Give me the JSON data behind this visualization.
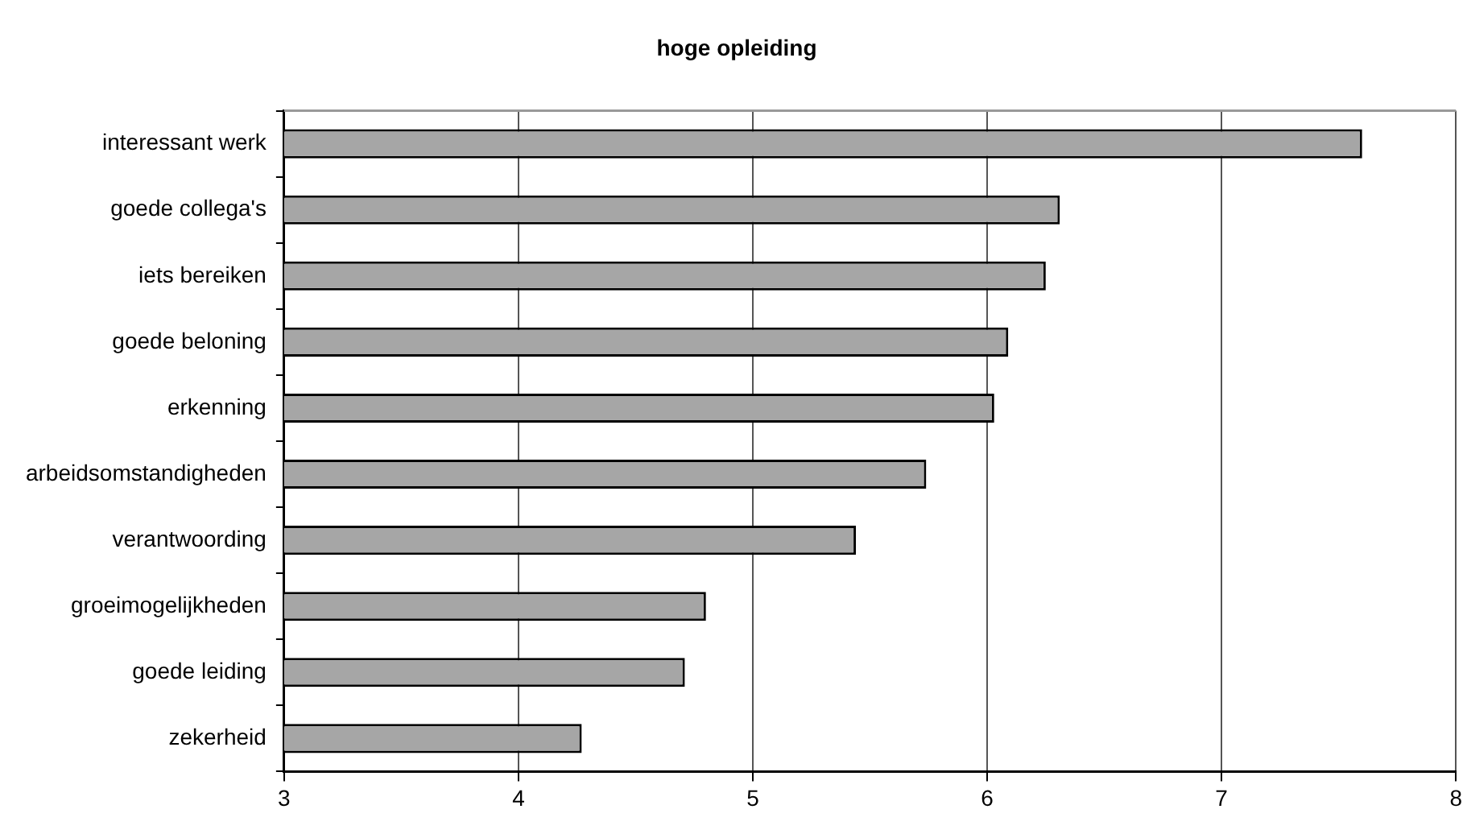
{
  "chart_data": {
    "type": "bar",
    "orientation": "horizontal",
    "title": "hoge opleiding",
    "categories": [
      "interessant werk",
      "goede collega's",
      "iets bereiken",
      "goede beloning",
      "erkenning",
      "arbeidsomstandigheden",
      "verantwoording",
      "groeimogelijkheden",
      "goede leiding",
      "zekerheid"
    ],
    "values": [
      7.6,
      6.31,
      6.25,
      6.09,
      6.03,
      5.74,
      5.44,
      4.8,
      4.71,
      4.27
    ],
    "color": "#a6a6a6",
    "xlim": [
      3,
      8
    ],
    "xticks": [
      3,
      4,
      5,
      6,
      7,
      8
    ],
    "grid": "x",
    "legend": false
  }
}
